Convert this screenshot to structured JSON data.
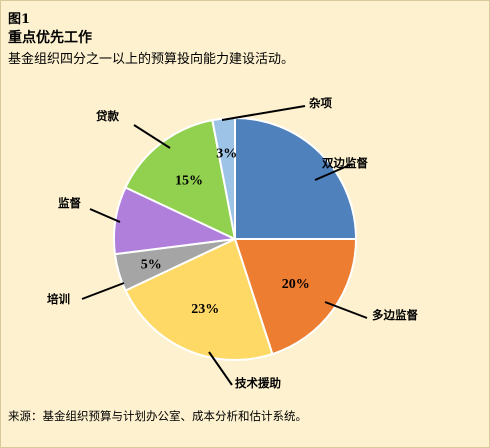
{
  "figure": {
    "label": "图1",
    "title": "重点优先工作",
    "subtitle": "基金组织四分之一以上的预算投向能力建设活动。",
    "source": "来源：基金组织预算与计划办公室、成本分析和估计系统。"
  },
  "chart_data": {
    "type": "pie",
    "title": "重点优先工作",
    "start": "top",
    "direction": "clockwise",
    "slices": [
      {
        "label": "双边监督",
        "value": 25,
        "value_label": "",
        "color": "#4f81bd"
      },
      {
        "label": "多边监督",
        "value": 20,
        "value_label": "20%",
        "color": "#ed7d31"
      },
      {
        "label": "技术援助",
        "value": 23,
        "value_label": "23%",
        "color": "#ffd966"
      },
      {
        "label": "培训",
        "value": 5,
        "value_label": "5%",
        "color": "#a5a5a5"
      },
      {
        "label": "监督",
        "value": 9,
        "value_label": "",
        "color": "#b07fdb"
      },
      {
        "label": "贷款",
        "value": 15,
        "value_label": "15%",
        "color": "#92d050"
      },
      {
        "label": "杂项",
        "value": 3,
        "value_label": "3%",
        "color": "#9dc3e6"
      }
    ]
  }
}
